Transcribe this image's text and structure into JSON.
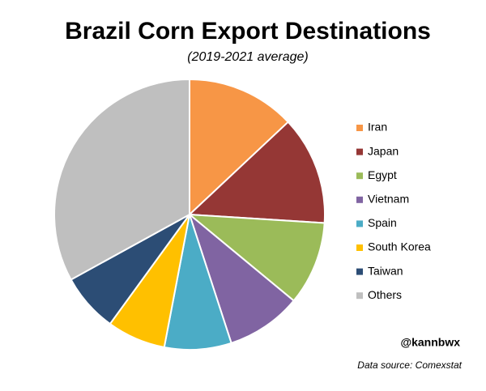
{
  "chart_data": {
    "type": "pie",
    "title": "Brazil Corn Export Destinations",
    "subtitle": "(2019-2021 average)",
    "categories": [
      "Iran",
      "Japan",
      "Egypt",
      "Vietnam",
      "Spain",
      "South Korea",
      "Taiwan",
      "Others"
    ],
    "values": [
      13,
      13,
      10,
      9,
      8,
      7,
      7,
      33
    ],
    "colors": [
      "#f79646",
      "#953735",
      "#9bbb59",
      "#8064a2",
      "#4bacc6",
      "#ffc000",
      "#2c4d75",
      "#bfbfbf"
    ],
    "credit": "@kannbwx",
    "source": "Data source: Comexstat"
  }
}
